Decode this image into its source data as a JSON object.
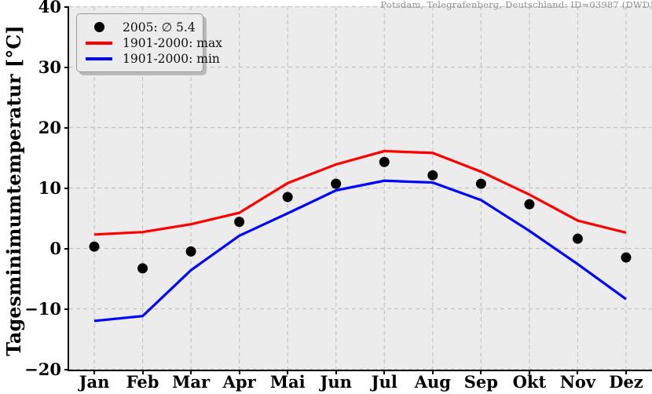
{
  "station": {
    "label": "Potsdam, Telegrafenberg, Deutschland: ID=03987 (DWD)"
  },
  "legend": {
    "items": [
      {
        "label": "2005: ∅ 5.4",
        "marker": "dot",
        "color": "#000000"
      },
      {
        "label": "1901-2000: max",
        "marker": "line",
        "color": "#ff0000"
      },
      {
        "label": "1901-2000: min",
        "marker": "line",
        "color": "#0000ff"
      }
    ]
  },
  "chart_data": {
    "type": "line",
    "title": "",
    "xlabel": "",
    "ylabel": "Tagesminimumtemperatur [°C]",
    "categories": [
      "Jan",
      "Feb",
      "Mar",
      "Apr",
      "Mai",
      "Jun",
      "Jul",
      "Aug",
      "Sep",
      "Okt",
      "Nov",
      "Dez"
    ],
    "series": [
      {
        "name": "2005: ∅ 5.4",
        "style": "scatter",
        "color": "#000000",
        "values": [
          0.3,
          -3.3,
          -0.5,
          4.4,
          8.5,
          10.7,
          14.3,
          12.1,
          10.7,
          7.3,
          1.6,
          -1.5
        ]
      },
      {
        "name": "1901-2000: max",
        "style": "line",
        "color": "#ff0000",
        "values": [
          2.3,
          2.7,
          4.0,
          5.9,
          10.8,
          13.9,
          16.1,
          15.8,
          12.7,
          8.9,
          4.6,
          2.6
        ]
      },
      {
        "name": "1901-2000: min",
        "style": "line",
        "color": "#0000ff",
        "values": [
          -12.0,
          -11.2,
          -3.6,
          2.1,
          5.8,
          9.6,
          11.2,
          10.9,
          8.0,
          2.9,
          -2.6,
          -8.4
        ]
      }
    ],
    "ylim": [
      -20,
      40
    ],
    "yticks": [
      40,
      30,
      20,
      10,
      0,
      -10,
      -20
    ],
    "grid": true,
    "legend_position": "upper-left",
    "plot_background": "#ececec",
    "annotation": "Potsdam, Telegrafenberg, Deutschland: ID=03987 (DWD)"
  },
  "colors": {
    "grid": "#c3c3c3",
    "spine": "#000000",
    "station_text": "#8f8f8f"
  }
}
